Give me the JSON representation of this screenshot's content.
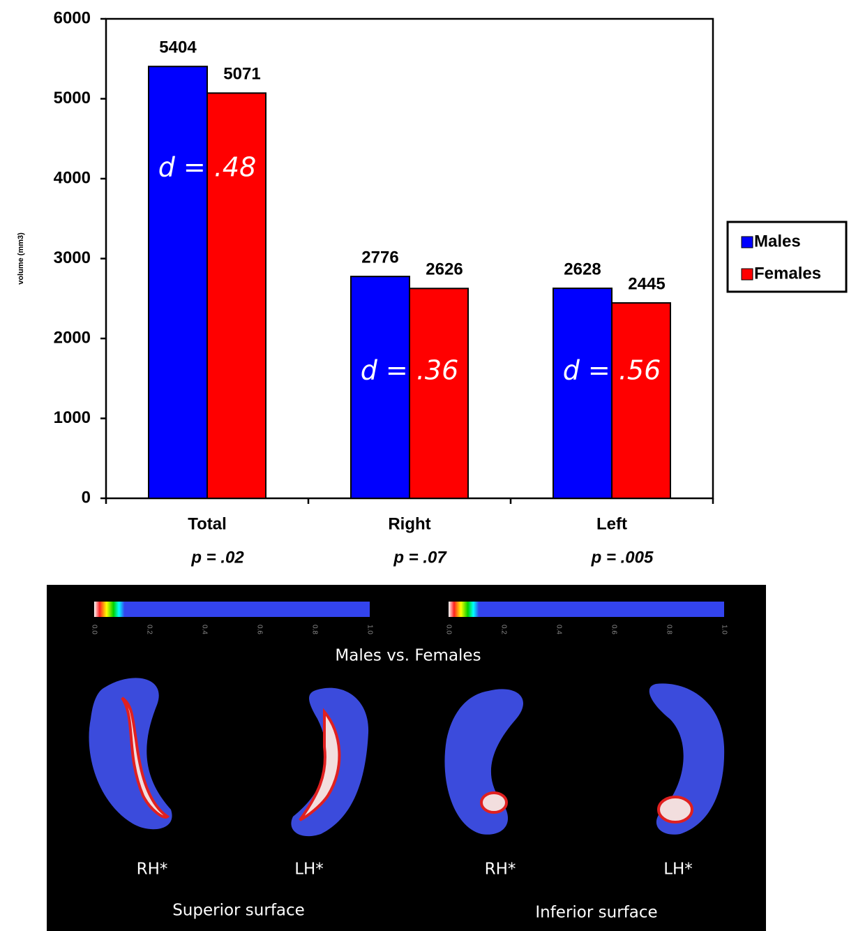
{
  "chart_data": {
    "type": "bar",
    "y_label": "volume (mm3)",
    "categories": [
      "Total",
      "Right",
      "Left"
    ],
    "category_notes": [
      "p = .02",
      "p = .07",
      "p = .005"
    ],
    "annotations": [
      "d = .48",
      "d = .36",
      "d = .56"
    ],
    "series": [
      {
        "name": "Males",
        "color": "#0000ff",
        "values": [
          5404,
          2776,
          2628
        ]
      },
      {
        "name": "Females",
        "color": "#ff0000",
        "values": [
          5071,
          2626,
          2445
        ]
      }
    ],
    "ylim": [
      0,
      6000
    ],
    "yticks": [
      0,
      1000,
      2000,
      3000,
      4000,
      5000,
      6000
    ],
    "legend": "right",
    "grid": false
  },
  "brain_panel": {
    "colorbar_ticks": [
      "0.0",
      "0.2",
      "0.4",
      "0.6",
      "0.8",
      "1.0"
    ],
    "title": "Males vs. Females",
    "views": [
      {
        "label": "Superior surface",
        "hemispheres": [
          "RH*",
          "LH*"
        ]
      },
      {
        "label": "Inferior surface",
        "hemispheres": [
          "RH*",
          "LH*"
        ]
      }
    ]
  }
}
